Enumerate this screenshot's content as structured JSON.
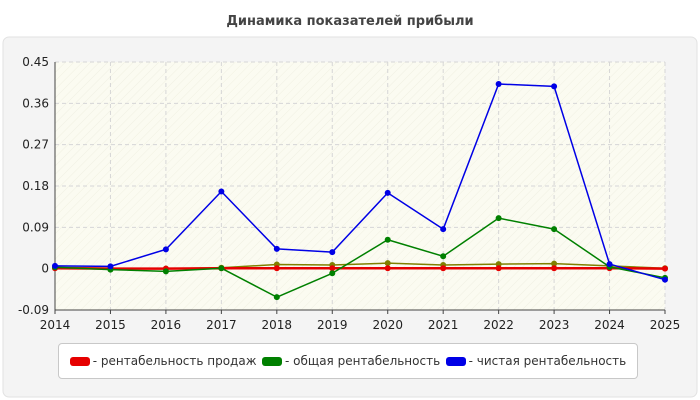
{
  "chart_data": {
    "type": "line",
    "title": "Динамика показателей прибыли",
    "xlabel": "",
    "ylabel": "",
    "x": [
      2014,
      2015,
      2016,
      2017,
      2018,
      2019,
      2020,
      2021,
      2022,
      2023,
      2024,
      2025
    ],
    "x_ticks": [
      "2014",
      "2015",
      "2016",
      "2017",
      "2018",
      "2019",
      "2020",
      "2021",
      "2022",
      "2023",
      "2024",
      "2025"
    ],
    "ylim": [
      -0.09,
      0.45
    ],
    "y_ticks": [
      "0.45",
      "0.36",
      "0.27",
      "0.18",
      "0.09",
      "0",
      "-0.09"
    ],
    "y_tick_values": [
      0.45,
      0.36,
      0.27,
      0.18,
      0.09,
      0,
      -0.09
    ],
    "grid": true,
    "legend_position": "bottom",
    "series": [
      {
        "name": "- чистая рентабельность",
        "color": "#0000e6",
        "values": [
          0.006,
          0.005,
          0.042,
          0.168,
          0.043,
          0.036,
          0.165,
          0.086,
          0.402,
          0.397,
          0.01,
          -0.024
        ]
      },
      {
        "name": "- общая рентабельность",
        "color": "#008000",
        "values": [
          0.003,
          -0.002,
          -0.006,
          0.001,
          -0.062,
          -0.01,
          0.063,
          0.027,
          0.11,
          0.086,
          0.004,
          -0.02
        ]
      },
      {
        "name": "- рентабельность продаж",
        "color": "#e60000",
        "values": [
          0.001,
          0.0,
          0.0,
          0.001,
          0.001,
          0.001,
          0.001,
          0.001,
          0.001,
          0.001,
          0.001,
          0.0
        ]
      },
      {
        "name": "",
        "color": "#808000",
        "values": [
          0.003,
          0.001,
          0.0,
          0.002,
          0.009,
          0.008,
          0.012,
          0.008,
          0.01,
          0.011,
          0.006,
          0.001
        ]
      }
    ]
  },
  "legend": {
    "items": [
      {
        "label": "- рентабельность продаж",
        "color": "#e60000"
      },
      {
        "label": "- общая рентабельность",
        "color": "#008000"
      },
      {
        "label": "- чистая рентабельность",
        "color": "#0000e6"
      }
    ]
  }
}
